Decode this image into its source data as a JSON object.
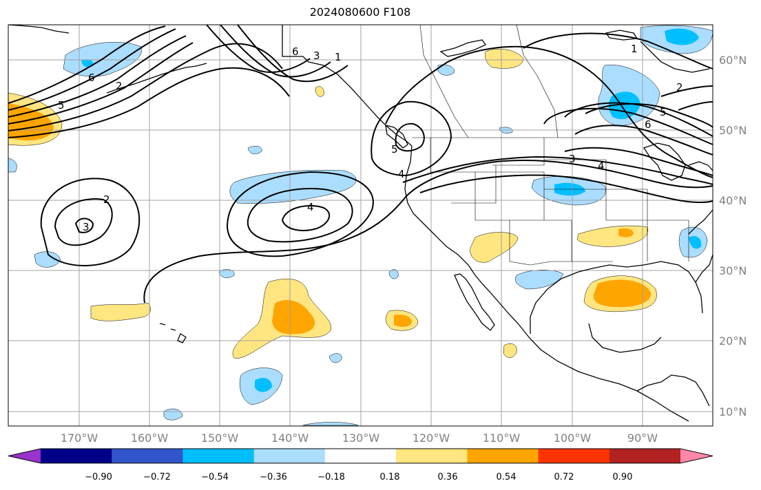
{
  "title": "2024080600 F108",
  "lat_labels": [
    "60°N",
    "50°N",
    "40°N",
    "30°N",
    "20°N",
    "10°N"
  ],
  "lon_labels": [
    "170°W",
    "160°W",
    "150°W",
    "140°W",
    "130°W",
    "120°W",
    "110°W",
    "100°W",
    "90°W"
  ],
  "colorbar": {
    "tick_labels": [
      "−0.90",
      "−0.72",
      "−0.54",
      "−0.36",
      "−0.18",
      "0.18",
      "0.36",
      "0.54",
      "0.72",
      "0.90"
    ],
    "colors": [
      "#9933cc",
      "#000088",
      "#3355cc",
      "#00bfff",
      "#aaddff",
      "#ffffff",
      "#ffe680",
      "#ffa500",
      "#ff3300",
      "#b22222",
      "#ff88aa"
    ]
  },
  "contour_labels": [
    "2",
    "3",
    "4",
    "5",
    "6",
    "1"
  ],
  "colors": {
    "ocean": "#ffffff",
    "grid": "#a0a0a0",
    "coast": "#000000",
    "contour": "#000000",
    "neg_light": "#aaddff",
    "neg_mid": "#00bfff",
    "pos_light": "#ffe680",
    "pos_mid": "#ffa500"
  }
}
